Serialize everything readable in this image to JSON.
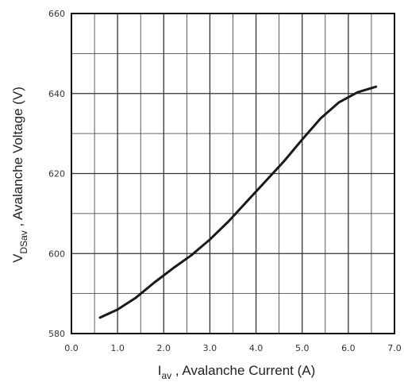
{
  "chart_data": {
    "type": "line",
    "title": "",
    "xlabel_main": "I",
    "xlabel_sub": "av",
    "xlabel_rest": " , Avalanche Current  (A)",
    "ylabel_main": "V",
    "ylabel_sub": "DSav",
    "ylabel_rest": " , Avalanche Voltage (V)",
    "xlim": [
      0,
      7
    ],
    "ylim": [
      580,
      660
    ],
    "x_ticks": [
      "0.0",
      "1.0",
      "2.0",
      "3.0",
      "4.0",
      "5.0",
      "6.0",
      "7.0"
    ],
    "y_ticks": [
      "580",
      "600",
      "620",
      "640",
      "660"
    ],
    "grid": true,
    "series": [
      {
        "x": [
          0.62,
          1.0,
          1.4,
          1.8,
          2.2,
          2.6,
          3.0,
          3.4,
          3.8,
          4.2,
          4.6,
          5.0,
          5.4,
          5.8,
          6.2,
          6.6
        ],
        "y": [
          584.0,
          586.0,
          589.0,
          592.8,
          596.3,
          599.6,
          603.5,
          608.0,
          613.0,
          618.0,
          623.0,
          628.5,
          633.8,
          637.8,
          640.3,
          641.7
        ]
      }
    ],
    "line_color": "#1a1a1a",
    "grid_color": "#333333"
  }
}
